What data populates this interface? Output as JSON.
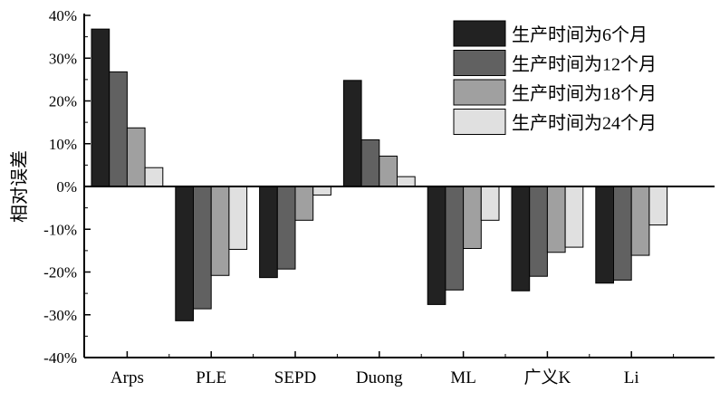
{
  "chart_data": {
    "type": "bar",
    "title": "",
    "xlabel": "",
    "ylabel": "相对误差",
    "ylim": [
      -40,
      40
    ],
    "yticks": [
      "-40%",
      "-30%",
      "-20%",
      "-10%",
      "0%",
      "10%",
      "20%",
      "30%",
      "40%"
    ],
    "categories": [
      "Arps",
      "PLE",
      "SEPD",
      "Duong",
      "ML",
      "广义K",
      "Li"
    ],
    "legend_position": "top-right",
    "series": [
      {
        "name": "生产时间为6个月",
        "color": "#222222",
        "values": [
          36.8,
          -31.4,
          -21.3,
          24.8,
          -27.6,
          -24.4,
          -22.6
        ]
      },
      {
        "name": "生产时间为12个月",
        "color": "#616161",
        "values": [
          26.8,
          -28.6,
          -19.3,
          10.9,
          -24.2,
          -21.0,
          -21.9
        ]
      },
      {
        "name": "生产时间为18个月",
        "color": "#a0a0a0",
        "values": [
          13.7,
          -20.8,
          -7.9,
          7.1,
          -14.5,
          -15.4,
          -16.1
        ]
      },
      {
        "name": "生产时间为24个月",
        "color": "#e0e0e0",
        "values": [
          4.4,
          -14.7,
          -2.0,
          2.3,
          -7.9,
          -14.2,
          -9.0
        ]
      }
    ]
  }
}
